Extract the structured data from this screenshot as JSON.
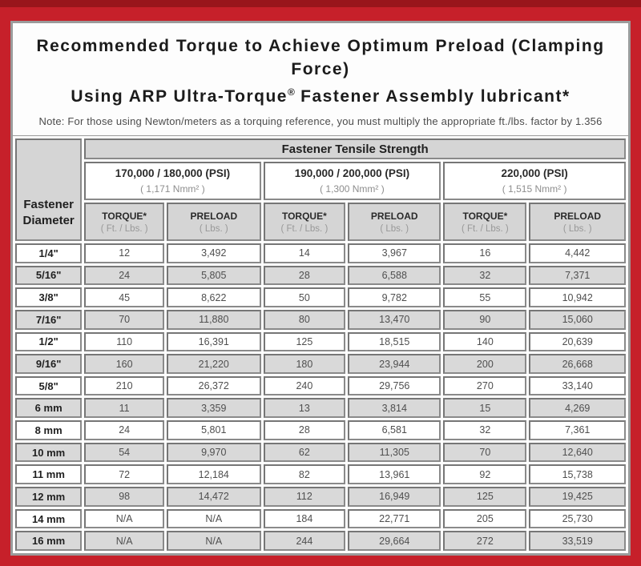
{
  "colors": {
    "frame_red": "#c6202a",
    "top_strip_red": "#99151b",
    "header_gray": "#d5d5d5",
    "alt_row_gray": "#d9d9d9",
    "cell_border_gray": "#8a8a8a"
  },
  "title": {
    "line1": "Recommended Torque to Achieve Optimum Preload (Clamping Force)",
    "line2_pre": "Using ARP Ultra-Torque",
    "line2_sup": "®",
    "line2_post": " Fastener Assembly lubricant*"
  },
  "note": "Note: For those using Newton/meters as a torquing reference, you must multiply the appropriate ft./lbs. factor by 1.356",
  "table": {
    "corner_header": {
      "line1": "Fastener",
      "line2": "Diameter"
    },
    "tensile_header": "Fastener Tensile Strength",
    "strength_groups": [
      {
        "psi": "170,000 / 180,000 (PSI)",
        "nmm": "( 1,171 Nmm² )"
      },
      {
        "psi": "190,000 / 200,000 (PSI)",
        "nmm": "( 1,300 Nmm² )"
      },
      {
        "psi": "220,000 (PSI)",
        "nmm": "( 1,515 Nmm² )"
      }
    ],
    "sub_headers": {
      "torque_label": "TORQUE*",
      "torque_unit": "( Ft. / Lbs. )",
      "preload_label": "PRELOAD",
      "preload_unit": "( Lbs. )"
    },
    "rows": [
      {
        "diameter": "1/4\"",
        "values": [
          "12",
          "3,492",
          "14",
          "3,967",
          "16",
          "4,442"
        ]
      },
      {
        "diameter": "5/16\"",
        "values": [
          "24",
          "5,805",
          "28",
          "6,588",
          "32",
          "7,371"
        ]
      },
      {
        "diameter": "3/8\"",
        "values": [
          "45",
          "8,622",
          "50",
          "9,782",
          "55",
          "10,942"
        ]
      },
      {
        "diameter": "7/16\"",
        "values": [
          "70",
          "11,880",
          "80",
          "13,470",
          "90",
          "15,060"
        ]
      },
      {
        "diameter": "1/2\"",
        "values": [
          "110",
          "16,391",
          "125",
          "18,515",
          "140",
          "20,639"
        ]
      },
      {
        "diameter": "9/16\"",
        "values": [
          "160",
          "21,220",
          "180",
          "23,944",
          "200",
          "26,668"
        ]
      },
      {
        "diameter": "5/8\"",
        "values": [
          "210",
          "26,372",
          "240",
          "29,756",
          "270",
          "33,140"
        ]
      },
      {
        "diameter": "6 mm",
        "values": [
          "11",
          "3,359",
          "13",
          "3,814",
          "15",
          "4,269"
        ]
      },
      {
        "diameter": "8 mm",
        "values": [
          "24",
          "5,801",
          "28",
          "6,581",
          "32",
          "7,361"
        ]
      },
      {
        "diameter": "10 mm",
        "values": [
          "54",
          "9,970",
          "62",
          "11,305",
          "70",
          "12,640"
        ]
      },
      {
        "diameter": "11 mm",
        "values": [
          "72",
          "12,184",
          "82",
          "13,961",
          "92",
          "15,738"
        ]
      },
      {
        "diameter": "12 mm",
        "values": [
          "98",
          "14,472",
          "112",
          "16,949",
          "125",
          "19,425"
        ]
      },
      {
        "diameter": "14 mm",
        "values": [
          "N/A",
          "N/A",
          "184",
          "22,771",
          "205",
          "25,730"
        ]
      },
      {
        "diameter": "16 mm",
        "values": [
          "N/A",
          "N/A",
          "244",
          "29,664",
          "272",
          "33,519"
        ]
      }
    ]
  }
}
